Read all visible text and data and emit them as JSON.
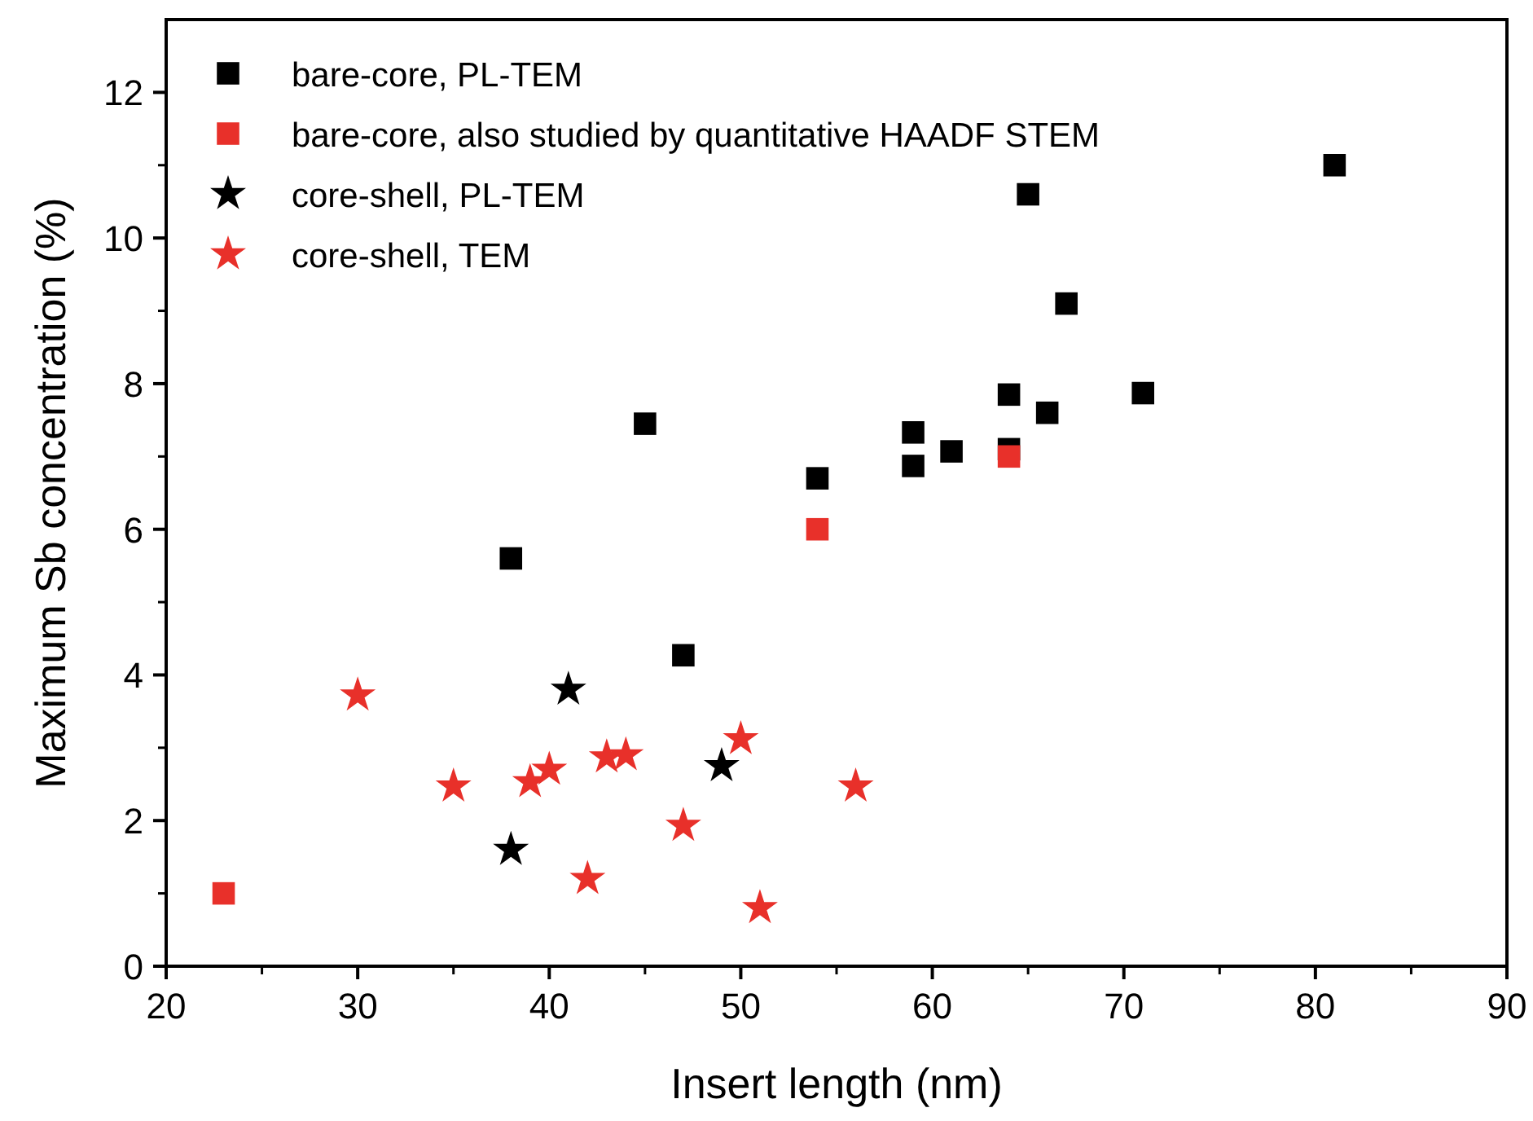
{
  "chart_data": {
    "type": "scatter",
    "xlabel": "Insert length (nm)",
    "ylabel": "Maximum Sb concentration (%)",
    "xlim": [
      20,
      90
    ],
    "xticks": [
      20,
      30,
      40,
      50,
      60,
      70,
      80,
      90
    ],
    "ylim": [
      0,
      13
    ],
    "yticks": [
      0,
      2,
      4,
      6,
      8,
      10,
      12
    ],
    "grid": false,
    "legend": "top left",
    "series": [
      {
        "name": "bare-core, PL-TEM",
        "color": "#000000",
        "marker": "square",
        "x": [
          38,
          45,
          47,
          54,
          59,
          59,
          61,
          64,
          64,
          65,
          66,
          67,
          71,
          81
        ],
        "values": [
          5.6,
          7.45,
          4.27,
          6.7,
          6.87,
          7.33,
          7.07,
          7.85,
          7.1,
          10.6,
          7.6,
          9.1,
          7.87,
          11.0
        ]
      },
      {
        "name": "bare-core, also studied by quantitative HAADF STEM",
        "color": "#e8302a",
        "marker": "square",
        "x": [
          23,
          54,
          64
        ],
        "values": [
          1.0,
          6.0,
          7.0
        ]
      },
      {
        "name": "core-shell, PL-TEM",
        "color": "#000000",
        "marker": "star",
        "x": [
          38,
          41,
          49
        ],
        "values": [
          1.6,
          3.8,
          2.75
        ]
      },
      {
        "name": "core-shell, TEM",
        "color": "#e8302a",
        "marker": "star",
        "x": [
          30,
          35,
          39,
          40,
          42,
          43,
          44,
          47,
          50,
          51,
          56
        ],
        "values": [
          3.72,
          2.47,
          2.53,
          2.7,
          1.2,
          2.87,
          2.9,
          1.93,
          3.12,
          0.8,
          2.47
        ]
      }
    ]
  }
}
